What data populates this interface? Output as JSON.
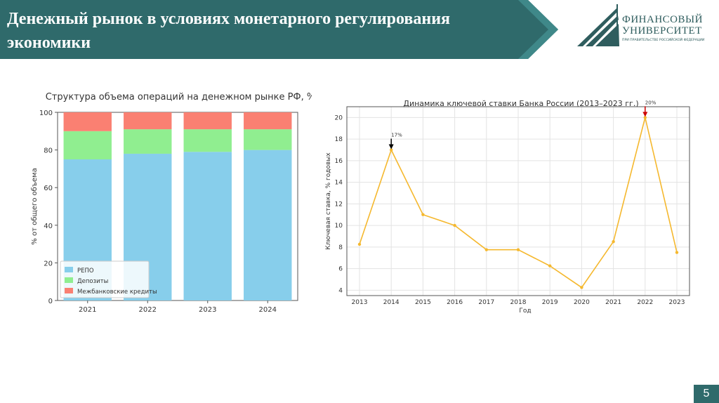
{
  "header": {
    "title": "Денежный рынок в условиях монетарного регулирования экономики"
  },
  "logo": {
    "line1": "ФИНАНСОВЫЙ",
    "line2": "УНИВЕРСИТЕТ",
    "subtitle": "ПРИ ПРАВИТЕЛЬСТВЕ РОССИЙСКОЙ ФЕДЕРАЦИИ"
  },
  "page_number": "5",
  "chart_data": [
    {
      "type": "bar",
      "stacked": true,
      "title": "Структура объема операций на денежном рынке РФ, %",
      "xlabel": "",
      "ylabel": "% от общего объема",
      "categories": [
        "2021",
        "2022",
        "2023",
        "2024"
      ],
      "ylim": [
        0,
        100
      ],
      "yticks": [
        0,
        20,
        40,
        60,
        80,
        100
      ],
      "grid": false,
      "legend_position": "bottom-left",
      "series": [
        {
          "name": "РЕПО",
          "values": [
            75,
            78,
            79,
            80
          ],
          "color": "#87ceeb"
        },
        {
          "name": "Депозиты",
          "values": [
            15,
            13,
            12,
            11
          ],
          "color": "#90ee90"
        },
        {
          "name": "Межбанковские кредиты",
          "values": [
            10,
            9,
            9,
            9
          ],
          "color": "#fa8072"
        }
      ]
    },
    {
      "type": "line",
      "title": "Динамика ключевой ставки Банка России (2013–2023 гг.)",
      "xlabel": "Год",
      "ylabel": "Ключевая ставка, % годовых",
      "x": [
        "2013",
        "2014",
        "2015",
        "2016",
        "2017",
        "2018",
        "2019",
        "2020",
        "2021",
        "2022",
        "2023"
      ],
      "ylim": [
        3.5,
        21
      ],
      "yticks": [
        4,
        6,
        8,
        10,
        12,
        14,
        16,
        18,
        20
      ],
      "grid": true,
      "series": [
        {
          "values": [
            8.25,
            17,
            11,
            10,
            7.75,
            7.75,
            6.25,
            4.25,
            8.5,
            20,
            7.5
          ],
          "color": "#f5b82e"
        }
      ],
      "annotations": [
        {
          "x": "2014",
          "y": 17,
          "text": "17%",
          "arrow_color": "#000000"
        },
        {
          "x": "2022",
          "y": 20,
          "text": "20%",
          "arrow_color": "#cc0000"
        }
      ]
    }
  ],
  "colors": {
    "header_band": "#2f6a6b",
    "header_accent": "#3f8889",
    "logo": "#2f5d5e"
  }
}
